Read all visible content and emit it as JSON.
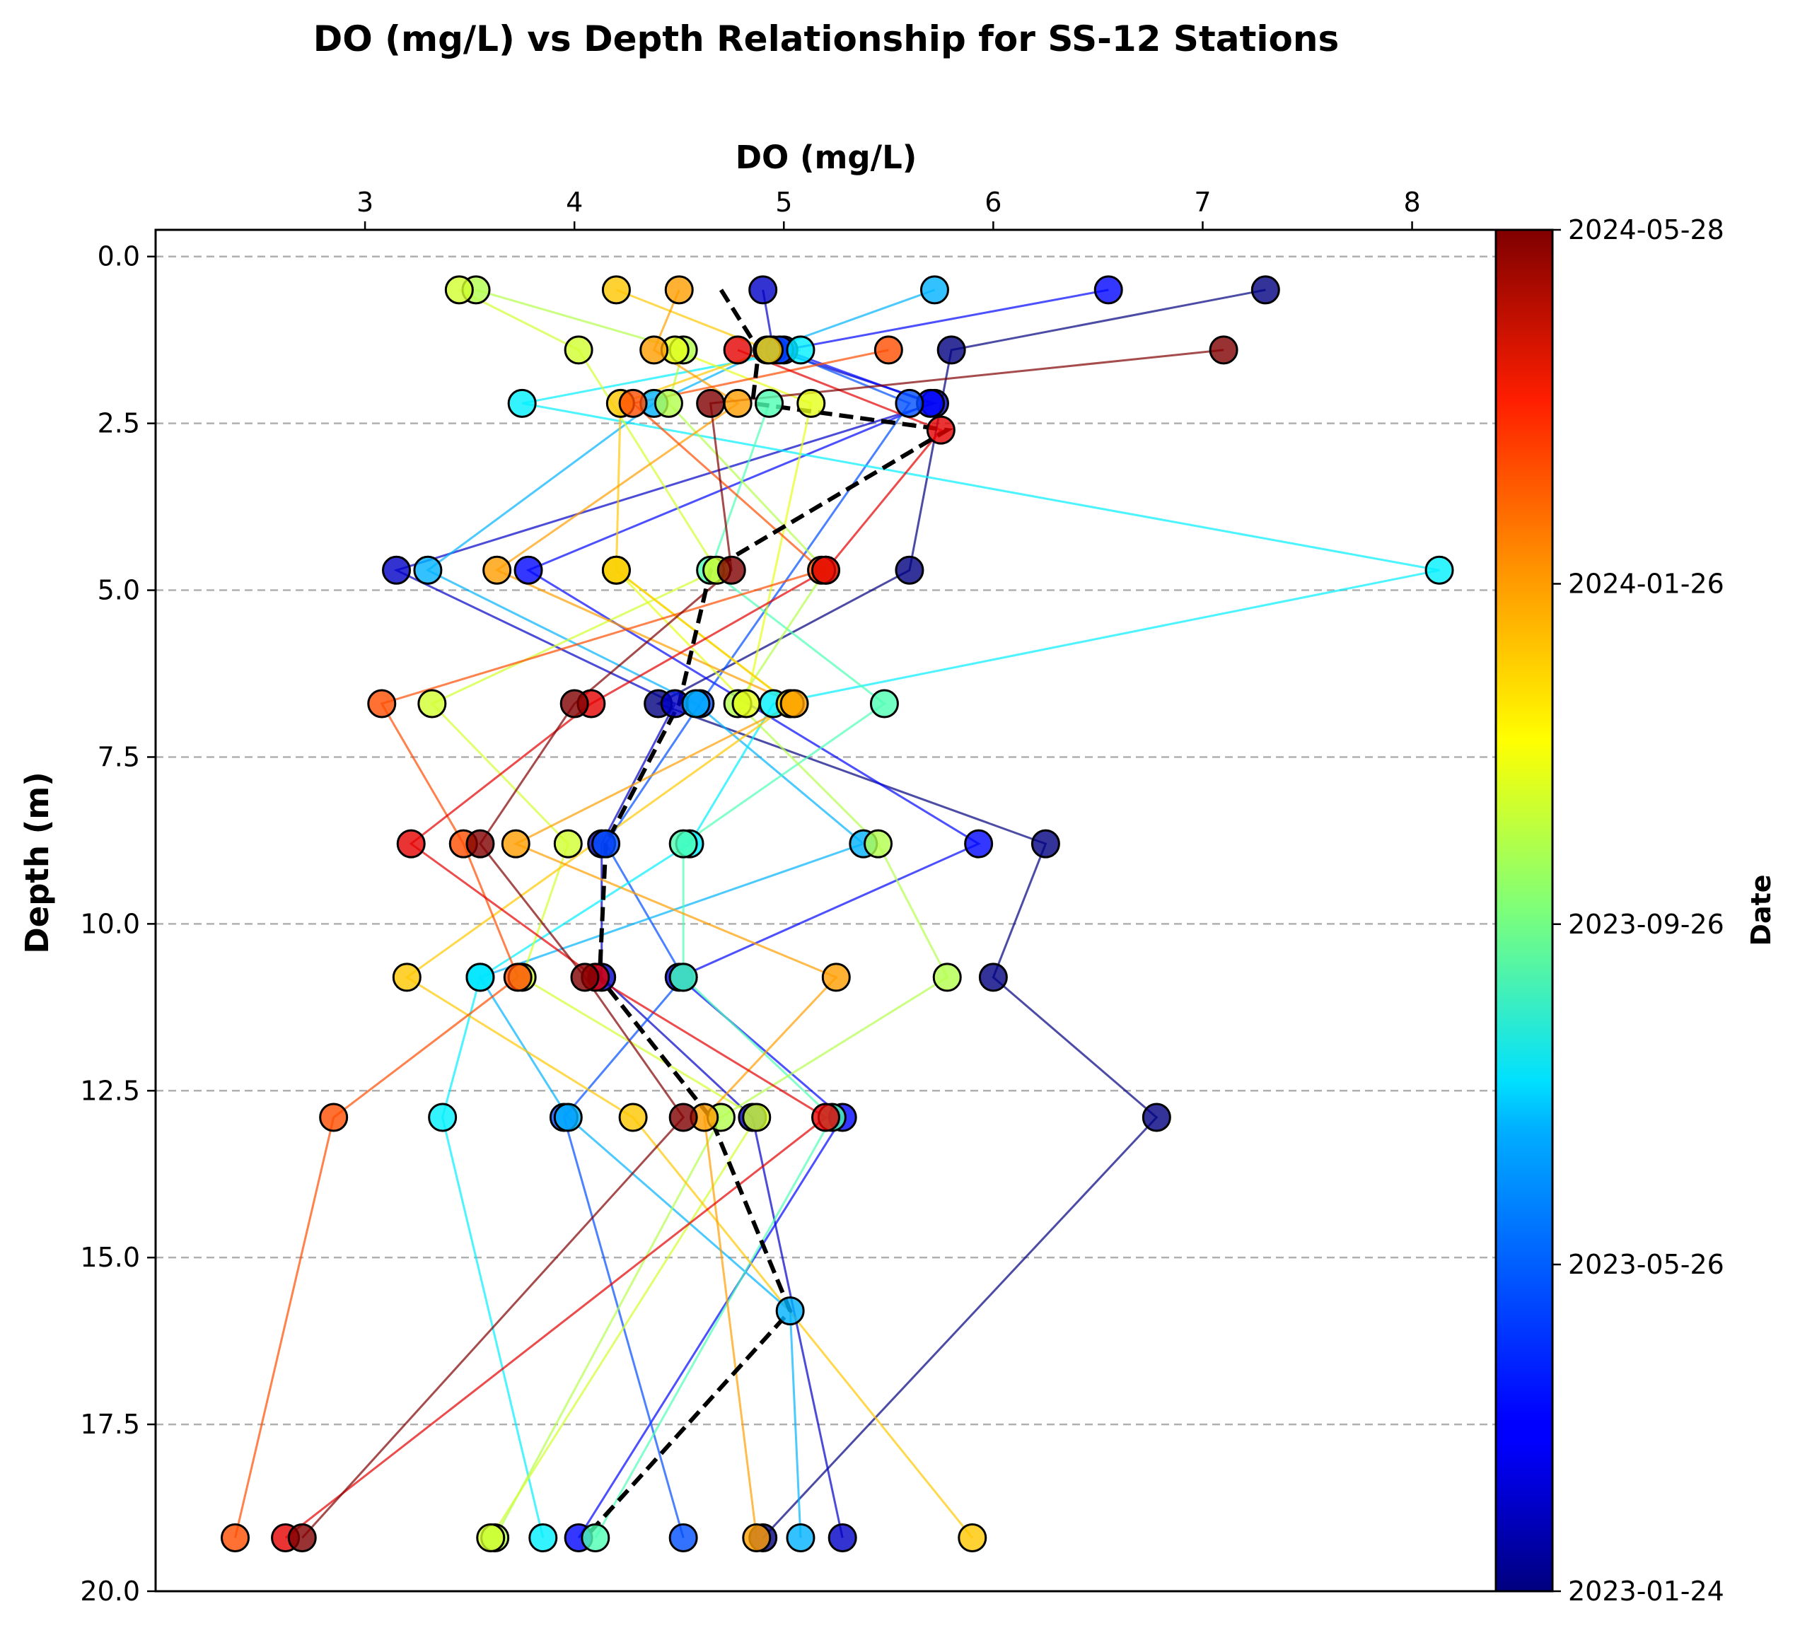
{
  "chart_data": {
    "type": "line",
    "title": "DO (mg/L) vs Depth Relationship for SS-12 Stations",
    "xlabel": "DO (mg/L)",
    "ylabel": "Depth (m)",
    "xlim": [
      2.0,
      8.4
    ],
    "ylim": [
      20.0,
      -0.4
    ],
    "x_axis_position": "top",
    "y_inverted": true,
    "grid": "horizontal dashed",
    "x_ticks": [
      3,
      4,
      5,
      6,
      7,
      8
    ],
    "y_ticks": [
      0.0,
      2.5,
      5.0,
      7.5,
      10.0,
      12.5,
      15.0,
      17.5,
      20.0
    ],
    "y_tick_labels": [
      "0.0",
      "2.5",
      "5.0",
      "7.5",
      "10.0",
      "12.5",
      "15.0",
      "17.5",
      "20.0"
    ],
    "colorbar": {
      "label": "Date",
      "colormap": "jet",
      "range": [
        "2023-01-24",
        "2024-05-28"
      ],
      "ticks": [
        {
          "label": "2023-01-24",
          "pos": 0.0
        },
        {
          "label": "2023-05-26",
          "pos": 0.24
        },
        {
          "label": "2023-09-26",
          "pos": 0.49
        },
        {
          "label": "2024-01-26",
          "pos": 0.74
        },
        {
          "label": "2024-05-28",
          "pos": 1.0
        }
      ]
    },
    "series": [
      {
        "t": 0.0,
        "points": [
          [
            7.3,
            0.5
          ],
          [
            5.8,
            1.4
          ],
          [
            5.6,
            4.7
          ],
          [
            4.4,
            6.7
          ],
          [
            6.25,
            8.8
          ],
          [
            6.0,
            10.8
          ],
          [
            6.78,
            12.9
          ],
          [
            4.9,
            19.2
          ]
        ]
      },
      {
        "t": 0.07,
        "points": [
          [
            4.9,
            0.5
          ],
          [
            4.95,
            1.4
          ],
          [
            5.72,
            2.2
          ],
          [
            3.15,
            4.7
          ],
          [
            4.48,
            6.7
          ],
          [
            4.13,
            8.8
          ],
          [
            4.13,
            10.8
          ],
          [
            4.85,
            12.9
          ],
          [
            5.28,
            19.2
          ]
        ]
      },
      {
        "t": 0.13,
        "points": [
          [
            6.55,
            0.5
          ],
          [
            5.0,
            1.4
          ],
          [
            5.7,
            2.2
          ],
          [
            3.78,
            4.7
          ],
          [
            5.93,
            8.8
          ],
          [
            4.5,
            10.8
          ],
          [
            5.28,
            12.9
          ],
          [
            4.02,
            19.2
          ]
        ]
      },
      {
        "t": 0.2,
        "points": [
          [
            4.98,
            1.4
          ],
          [
            5.6,
            2.2
          ],
          [
            4.6,
            6.7
          ],
          [
            4.15,
            8.8
          ],
          [
            4.52,
            10.8
          ],
          [
            3.95,
            12.9
          ],
          [
            4.52,
            19.2
          ]
        ]
      },
      {
        "t": 0.3,
        "points": [
          [
            5.72,
            0.5
          ],
          [
            4.92,
            1.4
          ],
          [
            4.38,
            2.2
          ],
          [
            3.3,
            4.7
          ],
          [
            4.58,
            6.7
          ],
          [
            5.38,
            8.8
          ],
          [
            3.55,
            10.8
          ],
          [
            3.97,
            12.9
          ],
          [
            5.03,
            15.8
          ],
          [
            5.08,
            19.2
          ]
        ]
      },
      {
        "t": 0.36,
        "points": [
          [
            5.08,
            1.4
          ],
          [
            3.75,
            2.2
          ],
          [
            8.13,
            4.7
          ],
          [
            4.95,
            6.7
          ],
          [
            4.55,
            8.8
          ],
          [
            3.55,
            10.8
          ],
          [
            3.37,
            12.9
          ],
          [
            3.85,
            19.2
          ]
        ]
      },
      {
        "t": 0.45,
        "points": [
          [
            4.93,
            2.2
          ],
          [
            4.65,
            4.7
          ],
          [
            5.48,
            6.7
          ],
          [
            4.52,
            8.8
          ],
          [
            4.52,
            10.8
          ],
          [
            5.23,
            12.9
          ],
          [
            4.1,
            19.2
          ]
        ]
      },
      {
        "t": 0.55,
        "points": [
          [
            3.53,
            0.5
          ],
          [
            4.52,
            1.4
          ],
          [
            4.45,
            2.2
          ],
          [
            5.2,
            4.7
          ],
          [
            4.78,
            6.7
          ],
          [
            5.45,
            8.8
          ],
          [
            5.78,
            10.8
          ],
          [
            4.7,
            12.9
          ],
          [
            3.62,
            19.2
          ]
        ]
      },
      {
        "t": 0.58,
        "points": [
          [
            3.45,
            0.5
          ],
          [
            4.02,
            1.4
          ],
          [
            4.68,
            4.7
          ],
          [
            3.32,
            6.7
          ],
          [
            3.97,
            8.8
          ],
          [
            3.75,
            10.8
          ],
          [
            4.87,
            12.9
          ],
          [
            3.6,
            19.2
          ]
        ]
      },
      {
        "t": 0.6,
        "points": [
          [
            4.48,
            1.4
          ],
          [
            5.13,
            2.2
          ],
          [
            4.82,
            6.7
          ],
          [
            4.2,
            4.7
          ],
          [
            5.03,
            6.7
          ]
        ]
      },
      {
        "t": 0.68,
        "points": [
          [
            4.2,
            0.5
          ],
          [
            4.93,
            1.4
          ],
          [
            4.22,
            2.2
          ],
          [
            4.2,
            4.7
          ],
          [
            5.03,
            6.7
          ],
          [
            3.2,
            10.8
          ],
          [
            4.28,
            12.9
          ],
          [
            5.9,
            19.2
          ]
        ]
      },
      {
        "t": 0.72,
        "points": [
          [
            4.5,
            0.5
          ],
          [
            4.38,
            1.4
          ],
          [
            4.78,
            2.2
          ],
          [
            3.63,
            4.7
          ],
          [
            5.05,
            6.7
          ],
          [
            3.72,
            8.8
          ],
          [
            5.25,
            10.8
          ],
          [
            4.62,
            12.9
          ],
          [
            4.87,
            19.2
          ]
        ]
      },
      {
        "t": 0.8,
        "points": [
          [
            5.5,
            1.4
          ],
          [
            4.28,
            2.2
          ],
          [
            5.18,
            4.7
          ],
          [
            3.08,
            6.7
          ],
          [
            3.47,
            8.8
          ],
          [
            3.73,
            10.8
          ],
          [
            2.85,
            12.9
          ],
          [
            2.38,
            19.2
          ]
        ]
      },
      {
        "t": 0.9,
        "points": [
          [
            4.78,
            1.4
          ],
          [
            5.75,
            2.6
          ],
          [
            5.2,
            4.7
          ],
          [
            4.08,
            6.7
          ],
          [
            3.22,
            8.8
          ],
          [
            4.1,
            10.8
          ],
          [
            5.2,
            12.9
          ],
          [
            2.62,
            19.2
          ]
        ]
      },
      {
        "t": 1.0,
        "points": [
          [
            7.1,
            1.4
          ],
          [
            4.65,
            2.2
          ],
          [
            4.75,
            4.7
          ],
          [
            4.0,
            6.7
          ],
          [
            3.55,
            8.8
          ],
          [
            4.05,
            10.8
          ],
          [
            4.52,
            12.9
          ],
          [
            2.7,
            19.2
          ]
        ]
      }
    ],
    "mean_line": {
      "style": "black dashed",
      "points": [
        [
          4.7,
          0.5
        ],
        [
          4.88,
          1.4
        ],
        [
          4.85,
          2.2
        ],
        [
          5.78,
          2.6
        ],
        [
          4.65,
          4.7
        ],
        [
          4.5,
          6.7
        ],
        [
          4.15,
          8.8
        ],
        [
          4.12,
          10.8
        ],
        [
          4.65,
          12.9
        ],
        [
          5.03,
          15.8
        ],
        [
          4.05,
          19.2
        ]
      ]
    }
  }
}
